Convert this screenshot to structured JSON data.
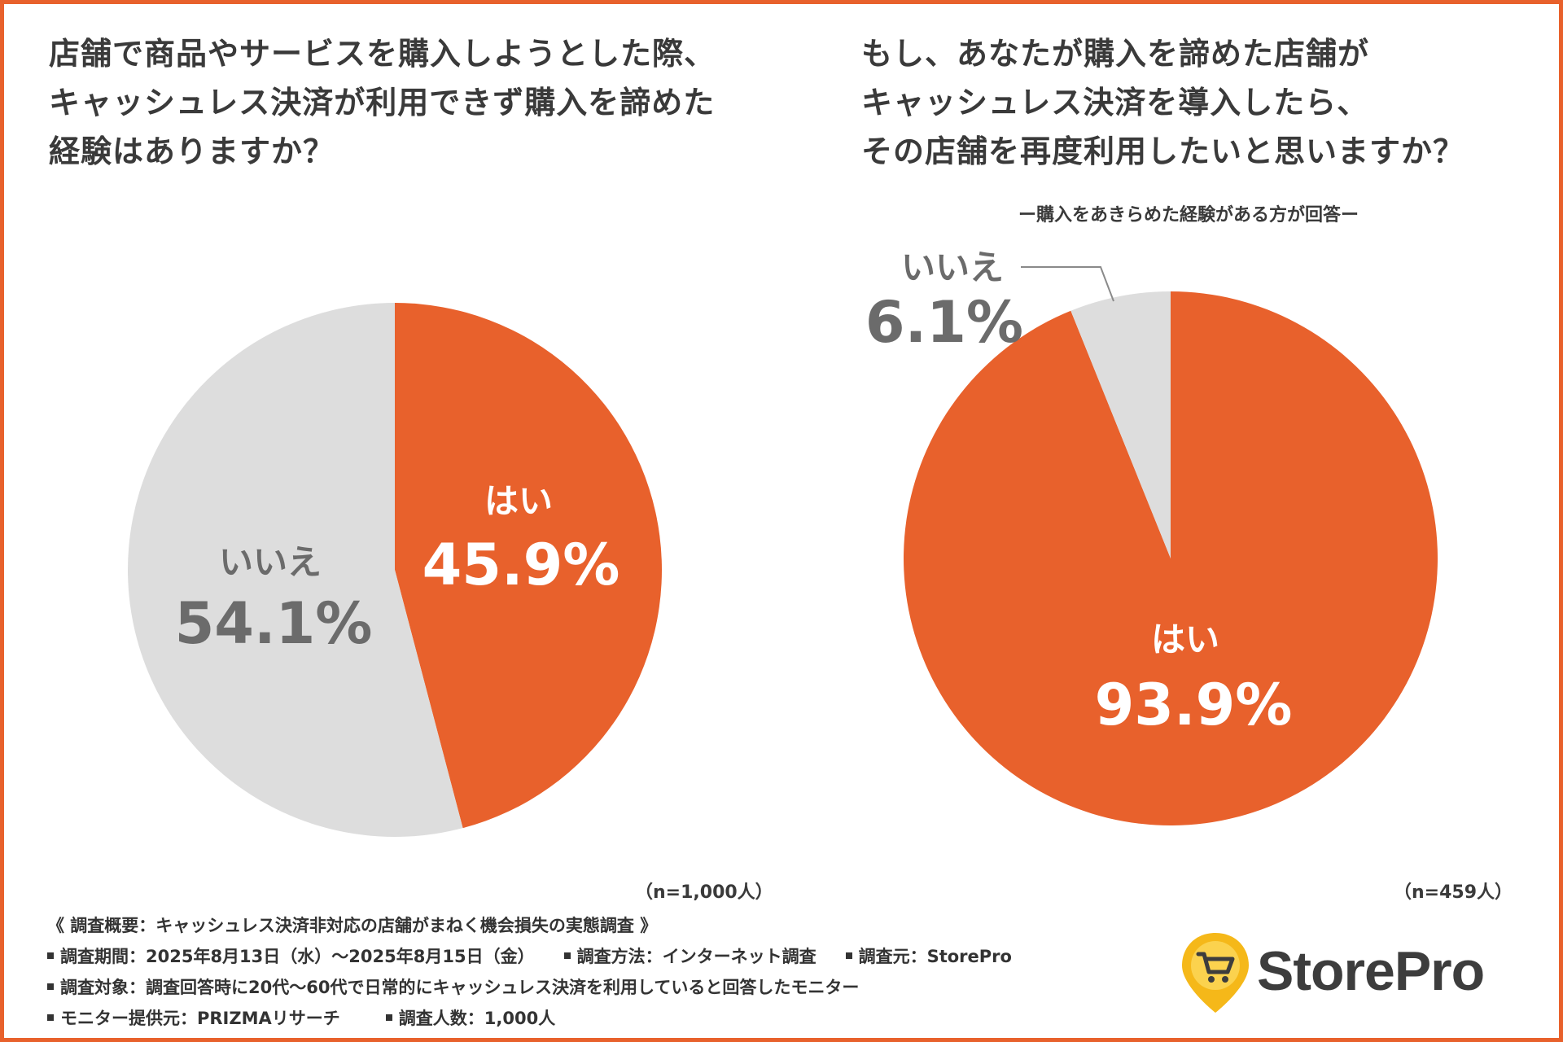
{
  "titles": {
    "left": "店舗で商品やサービスを購入しようとした際、\nキャッシュレス決済が利用できず購入を諦めた\n経験はありますか？",
    "right": "もし、あなたが購入を諦めた店舗が\nキャッシュレス決済を導入したら、\nその店舗を再度利用したいと思いますか？",
    "right_subtitle": "ー購入をあきらめた経験がある方が回答ー"
  },
  "colors": {
    "accent": "#e8612c",
    "gray": "#dddddd",
    "text": "#3a3a3a",
    "gray_text": "#6b6b6b"
  },
  "chart_data": [
    {
      "type": "pie",
      "sample": "（n=1,000人）",
      "slices": [
        {
          "label": "はい",
          "value": 45.9,
          "value_label": "45.9%",
          "color": "#e8612c"
        },
        {
          "label": "いいえ",
          "value": 54.1,
          "value_label": "54.1%",
          "color": "#dddddd"
        }
      ]
    },
    {
      "type": "pie",
      "sample": "（n=459人）",
      "slices": [
        {
          "label": "はい",
          "value": 93.9,
          "value_label": "93.9%",
          "color": "#e8612c"
        },
        {
          "label": "いいえ",
          "value": 6.1,
          "value_label": "6.1%",
          "color": "#dddddd"
        }
      ]
    }
  ],
  "footer": {
    "overview": "《 調査概要：キャッシュレス決済非対応の店舗がまねく機会損失の実態調査 》",
    "period": "調査期間：2025年8月13日（水）～2025年8月15日（金）",
    "method": "調査方法：インターネット調査",
    "source": "調査元：StorePro",
    "target": "調査対象：調査回答時に20代～60代で日常的にキャッシュレス決済を利用していると回答したモニター",
    "provider": "モニター提供元：PRIZMAリサーチ",
    "count": "調査人数：1,000人"
  },
  "logo": {
    "text": "StorePro",
    "icon": "shopping-cart-pin-icon"
  }
}
